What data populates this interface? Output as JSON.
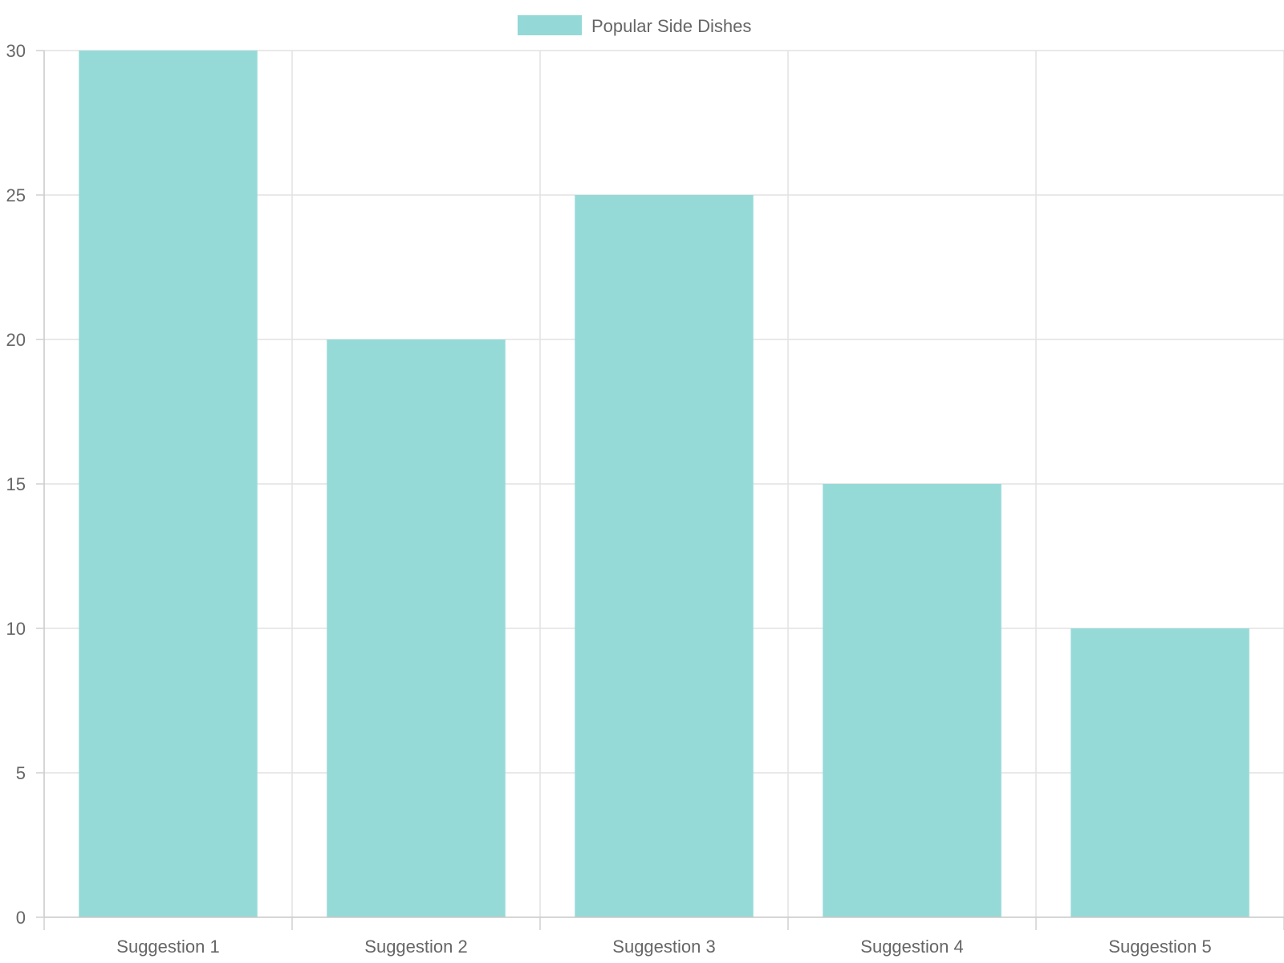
{
  "chart_data": {
    "type": "bar",
    "categories": [
      "Suggestion 1",
      "Suggestion 2",
      "Suggestion 3",
      "Suggestion 4",
      "Suggestion 5"
    ],
    "series": [
      {
        "name": "Popular Side Dishes",
        "values": [
          30,
          20,
          25,
          15,
          10
        ],
        "color": "#94d9d7"
      }
    ],
    "ylim": [
      0,
      30
    ],
    "yticks": [
      0,
      5,
      10,
      15,
      20,
      25,
      30
    ],
    "grid": true,
    "legend_position": "top-center"
  }
}
